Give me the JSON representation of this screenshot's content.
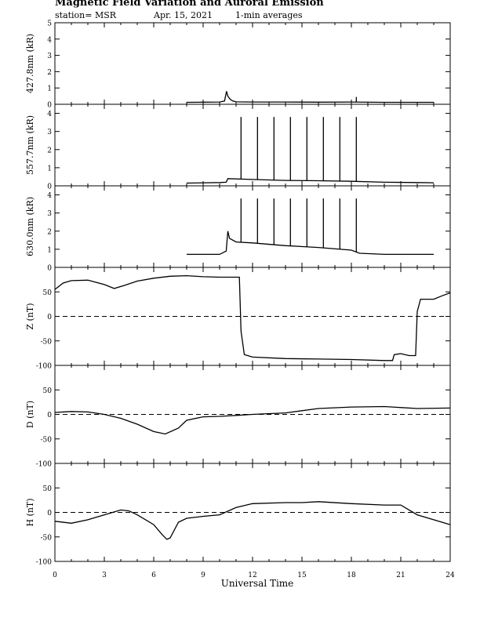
{
  "header": {
    "title": "Magnetic Field Variation and Auroral Emission",
    "station": "station= MSR",
    "date": "Apr. 15, 2021",
    "averaging": "1-min averages"
  },
  "chart_data": [
    {
      "type": "line",
      "ylabel": "427.8nm (kR)",
      "ylim": [
        0,
        5
      ],
      "yticks": [
        0,
        1,
        2,
        3,
        4,
        5
      ],
      "series": [
        {
          "style": "solid",
          "x": [
            8.0,
            9.0,
            10.0,
            10.3,
            10.42,
            10.5,
            10.65,
            10.8,
            11.0,
            12.0,
            14.0,
            16.0,
            18.0,
            20.0,
            22.0,
            23.0
          ],
          "y": [
            0.12,
            0.13,
            0.14,
            0.2,
            0.8,
            0.5,
            0.3,
            0.2,
            0.15,
            0.14,
            0.14,
            0.13,
            0.14,
            0.12,
            0.12,
            0.12
          ]
        }
      ],
      "spikes": [
        {
          "x": 18.3,
          "y": 0.45
        }
      ]
    },
    {
      "type": "line",
      "ylabel": "557.7nm (kR)",
      "ylim": [
        0,
        4.5
      ],
      "yticks": [
        0,
        1,
        2,
        3,
        4
      ],
      "series": [
        {
          "style": "solid",
          "x": [
            8.0,
            10.0,
            10.4,
            10.5,
            12.0,
            14.0,
            16.0,
            18.0,
            20.0,
            22.0,
            23.0
          ],
          "y": [
            0.15,
            0.18,
            0.2,
            0.4,
            0.35,
            0.3,
            0.28,
            0.25,
            0.2,
            0.18,
            0.17
          ]
        }
      ],
      "spikes": [
        {
          "x": 11.3,
          "y": 3.8
        },
        {
          "x": 12.3,
          "y": 3.8
        },
        {
          "x": 13.3,
          "y": 3.8
        },
        {
          "x": 14.3,
          "y": 3.8
        },
        {
          "x": 15.3,
          "y": 3.8
        },
        {
          "x": 16.3,
          "y": 3.8
        },
        {
          "x": 17.3,
          "y": 3.8
        },
        {
          "x": 18.3,
          "y": 3.8
        }
      ]
    },
    {
      "type": "line",
      "ylabel": "630.0nm (kR)",
      "ylim": [
        0,
        4.5
      ],
      "yticks": [
        0,
        1,
        2,
        3,
        4
      ],
      "series": [
        {
          "style": "solid",
          "x": [
            8.0,
            10.0,
            10.4,
            10.5,
            10.6,
            11.0,
            12.0,
            14.0,
            16.0,
            18.0,
            18.5,
            20.0,
            22.0,
            23.0
          ],
          "y": [
            0.72,
            0.72,
            0.9,
            2.0,
            1.6,
            1.4,
            1.35,
            1.2,
            1.1,
            0.95,
            0.78,
            0.72,
            0.72,
            0.72
          ]
        }
      ],
      "spikes": [
        {
          "x": 11.3,
          "y": 3.8
        },
        {
          "x": 12.3,
          "y": 3.8
        },
        {
          "x": 13.3,
          "y": 3.8
        },
        {
          "x": 14.3,
          "y": 3.8
        },
        {
          "x": 15.3,
          "y": 3.8
        },
        {
          "x": 16.3,
          "y": 3.8
        },
        {
          "x": 17.3,
          "y": 3.8
        },
        {
          "x": 18.3,
          "y": 3.8
        }
      ]
    },
    {
      "type": "line",
      "ylabel": "Z (nT)",
      "ylim": [
        -100,
        100
      ],
      "yticks": [
        -100,
        -50,
        0,
        50
      ],
      "baseline": 0,
      "series": [
        {
          "style": "solid",
          "x": [
            0.0,
            0.5,
            1.0,
            2.0,
            3.0,
            3.6,
            4.2,
            5.0,
            6.0,
            7.0,
            8.0,
            9.0,
            10.0,
            11.2,
            11.3,
            11.5,
            12.0,
            14.0,
            16.0,
            18.0,
            20.0,
            20.5,
            20.6,
            21.0,
            21.5,
            21.9,
            22.0,
            22.2,
            23.0,
            23.5,
            24.0
          ],
          "y": [
            55,
            68,
            73,
            74,
            65,
            57,
            63,
            72,
            78,
            82,
            83,
            81,
            80,
            80,
            -30,
            -78,
            -83,
            -86,
            -87,
            -88,
            -90,
            -90,
            -78,
            -76,
            -80,
            -80,
            10,
            35,
            35,
            42,
            48
          ]
        }
      ]
    },
    {
      "type": "line",
      "ylabel": "D (nT)",
      "ylim": [
        -100,
        100
      ],
      "yticks": [
        -100,
        -50,
        0,
        50
      ],
      "baseline": 0,
      "series": [
        {
          "style": "solid",
          "x": [
            0.0,
            1.0,
            2.0,
            3.0,
            4.0,
            5.0,
            6.0,
            6.7,
            7.5,
            8.0,
            9.0,
            10.0,
            11.0,
            12.0,
            14.0,
            16.0,
            18.0,
            20.0,
            22.0,
            24.0
          ],
          "y": [
            4,
            6,
            5,
            0,
            -8,
            -20,
            -35,
            -40,
            -28,
            -12,
            -5,
            -4,
            -2,
            0,
            3,
            12,
            15,
            16,
            12,
            13
          ]
        }
      ]
    },
    {
      "type": "line",
      "ylabel": "H (nT)",
      "ylim": [
        -100,
        100
      ],
      "yticks": [
        -100,
        -50,
        0,
        50
      ],
      "baseline": 0,
      "series": [
        {
          "style": "solid",
          "x": [
            0.0,
            1.0,
            2.0,
            3.0,
            4.0,
            4.5,
            5.0,
            6.0,
            6.5,
            6.8,
            7.0,
            7.5,
            8.0,
            9.0,
            10.0,
            11.0,
            12.0,
            14.0,
            15.0,
            16.0,
            18.0,
            20.0,
            21.0,
            22.0,
            23.0,
            24.0
          ],
          "y": [
            -18,
            -22,
            -15,
            -5,
            5,
            3,
            -5,
            -25,
            -45,
            -55,
            -52,
            -20,
            -12,
            -8,
            -5,
            10,
            18,
            20,
            20,
            22,
            18,
            15,
            15,
            -5,
            -15,
            -25
          ]
        }
      ]
    }
  ],
  "x_axis": {
    "label": "Universal Time",
    "ticks": [
      0,
      3,
      6,
      9,
      12,
      15,
      18,
      21,
      24
    ],
    "range": [
      0,
      24
    ]
  }
}
